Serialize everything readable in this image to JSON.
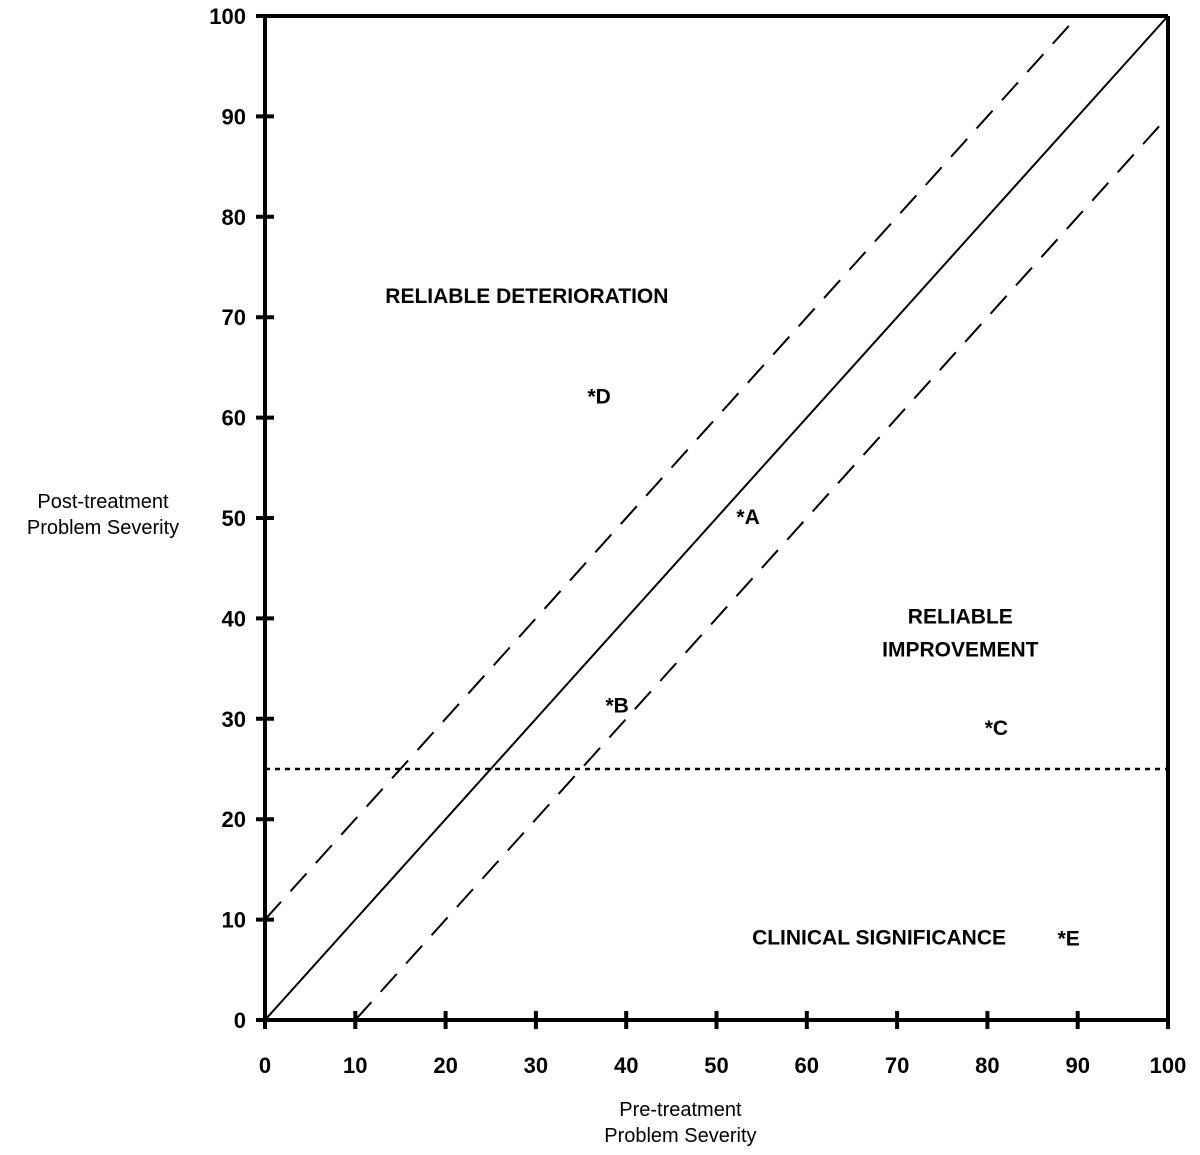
{
  "chart_data": {
    "type": "scatter",
    "title": "",
    "xlabel": [
      "Pre-treatment",
      "Problem Severity"
    ],
    "ylabel": [
      "Post-treatment",
      "Problem Severity"
    ],
    "xlim": [
      0,
      100
    ],
    "ylim": [
      0,
      100
    ],
    "x_ticks": [
      0,
      10,
      20,
      30,
      40,
      50,
      60,
      70,
      80,
      90,
      100
    ],
    "y_ticks": [
      0,
      10,
      20,
      30,
      40,
      50,
      60,
      70,
      80,
      90,
      100
    ],
    "grid": false,
    "reference_lines": [
      {
        "style": "solid",
        "points": [
          [
            0,
            0
          ],
          [
            100,
            100
          ]
        ]
      },
      {
        "style": "dashed",
        "points": [
          [
            0,
            10
          ],
          [
            90,
            100
          ]
        ]
      },
      {
        "style": "dashed",
        "points": [
          [
            10,
            0
          ],
          [
            100,
            90
          ]
        ]
      },
      {
        "style": "dotted",
        "points": [
          [
            0,
            25
          ],
          [
            100,
            25
          ]
        ]
      }
    ],
    "region_labels": [
      {
        "lines": [
          "RELIABLE DETERIORATION"
        ],
        "x": 29,
        "y": 71.4
      },
      {
        "lines": [
          "RELIABLE",
          "IMPROVEMENT"
        ],
        "x": 77,
        "y": 39.5
      },
      {
        "lines": [
          "CLINICAL SIGNIFICANCE"
        ],
        "x": 68,
        "y": 7.5
      }
    ],
    "points": [
      {
        "label": "*A",
        "x": 53.5,
        "y": 50.2
      },
      {
        "label": "*B",
        "x": 39,
        "y": 31.4
      },
      {
        "label": "*C",
        "x": 81,
        "y": 29.2
      },
      {
        "label": "*D",
        "x": 37,
        "y": 62.2
      },
      {
        "label": "*E",
        "x": 89,
        "y": 8.2
      }
    ]
  }
}
